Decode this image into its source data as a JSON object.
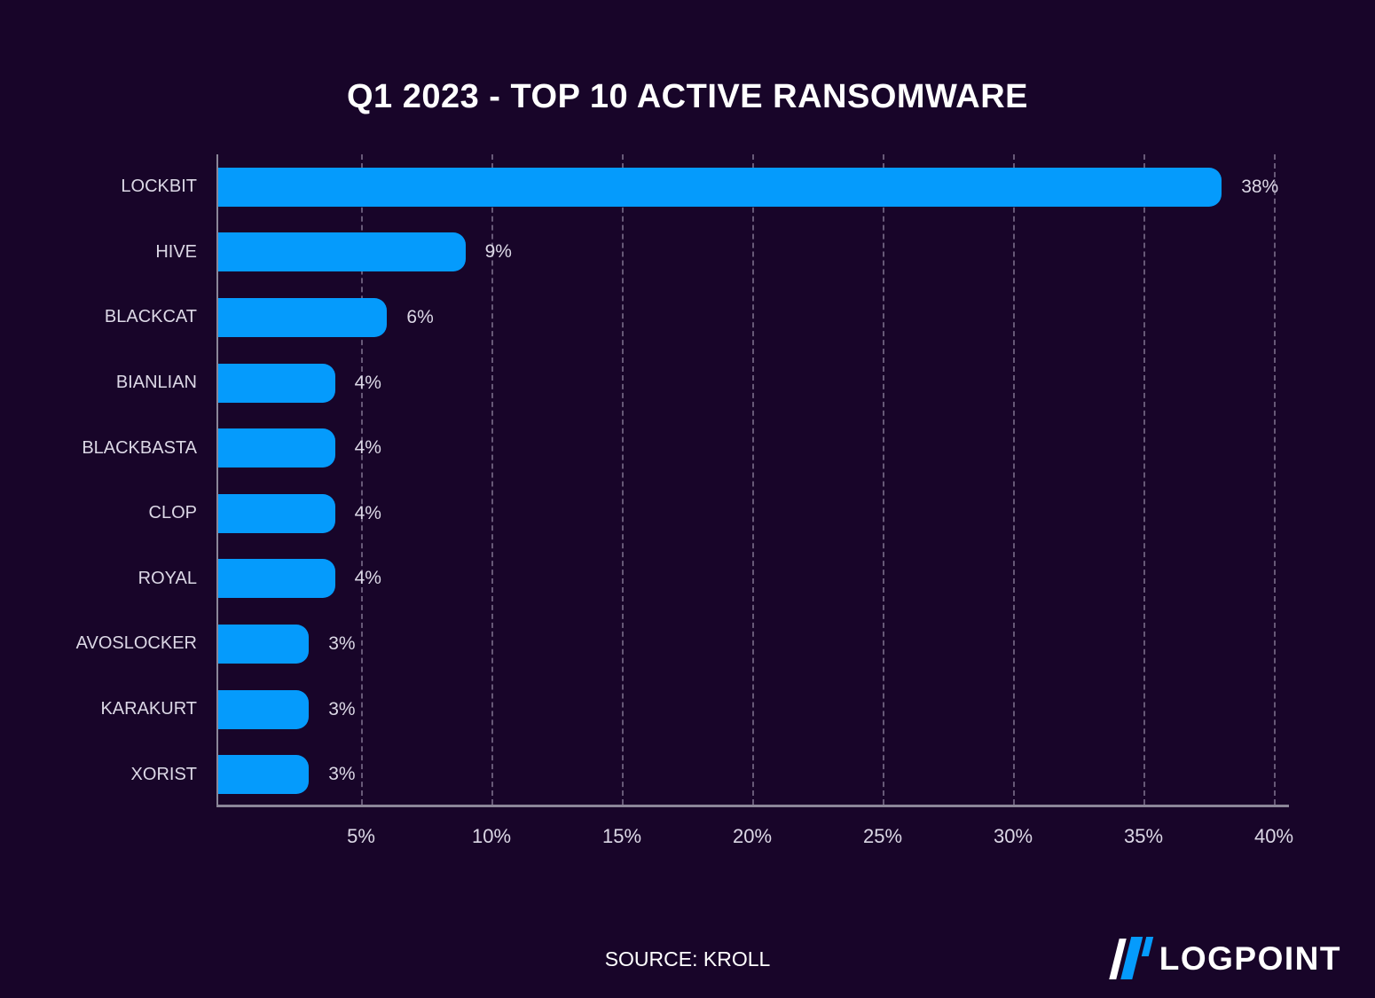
{
  "title": "Q1 2023 - TOP 10 ACTIVE RANSOMWARE",
  "source": "SOURCE: KROLL",
  "brand": {
    "name": "LOGPOINT"
  },
  "colors": {
    "background": "#180529",
    "bar": "#059bfc",
    "brand_blue": "#059bfc",
    "title_text": "#ffffff",
    "label_text": "#dcd8e6",
    "axis_line": "#8b8698",
    "gridline": "rgba(199,193,214,0.45)"
  },
  "chart_data": {
    "type": "bar",
    "orientation": "horizontal",
    "title": "Q1 2023 - TOP 10 ACTIVE RANSOMWARE",
    "categories": [
      "LOCKBIT",
      "HIVE",
      "BLACKCAT",
      "BIANLIAN",
      "BLACKBASTA",
      "CLOP",
      "ROYAL",
      "AVOSLOCKER",
      "KARAKURT",
      "XORIST"
    ],
    "values": [
      38,
      9,
      6,
      4,
      4,
      4,
      4,
      3,
      3,
      3
    ],
    "value_labels": [
      "38%",
      "9%",
      "6%",
      "4%",
      "4%",
      "4%",
      "4%",
      "3%",
      "3%",
      "3%"
    ],
    "x_ticks": [
      {
        "label": "5%",
        "value": 5
      },
      {
        "label": "10%",
        "value": 10
      },
      {
        "label": "15%",
        "value": 15
      },
      {
        "label": "20%",
        "value": 20
      },
      {
        "label": "25%",
        "value": 25
      },
      {
        "label": "30%",
        "value": 30
      },
      {
        "label": "35%",
        "value": 35
      },
      {
        "label": "40%",
        "value": 40
      }
    ],
    "xlim": [
      0,
      41
    ],
    "grid": "vertical-dashed",
    "legend": "none"
  }
}
